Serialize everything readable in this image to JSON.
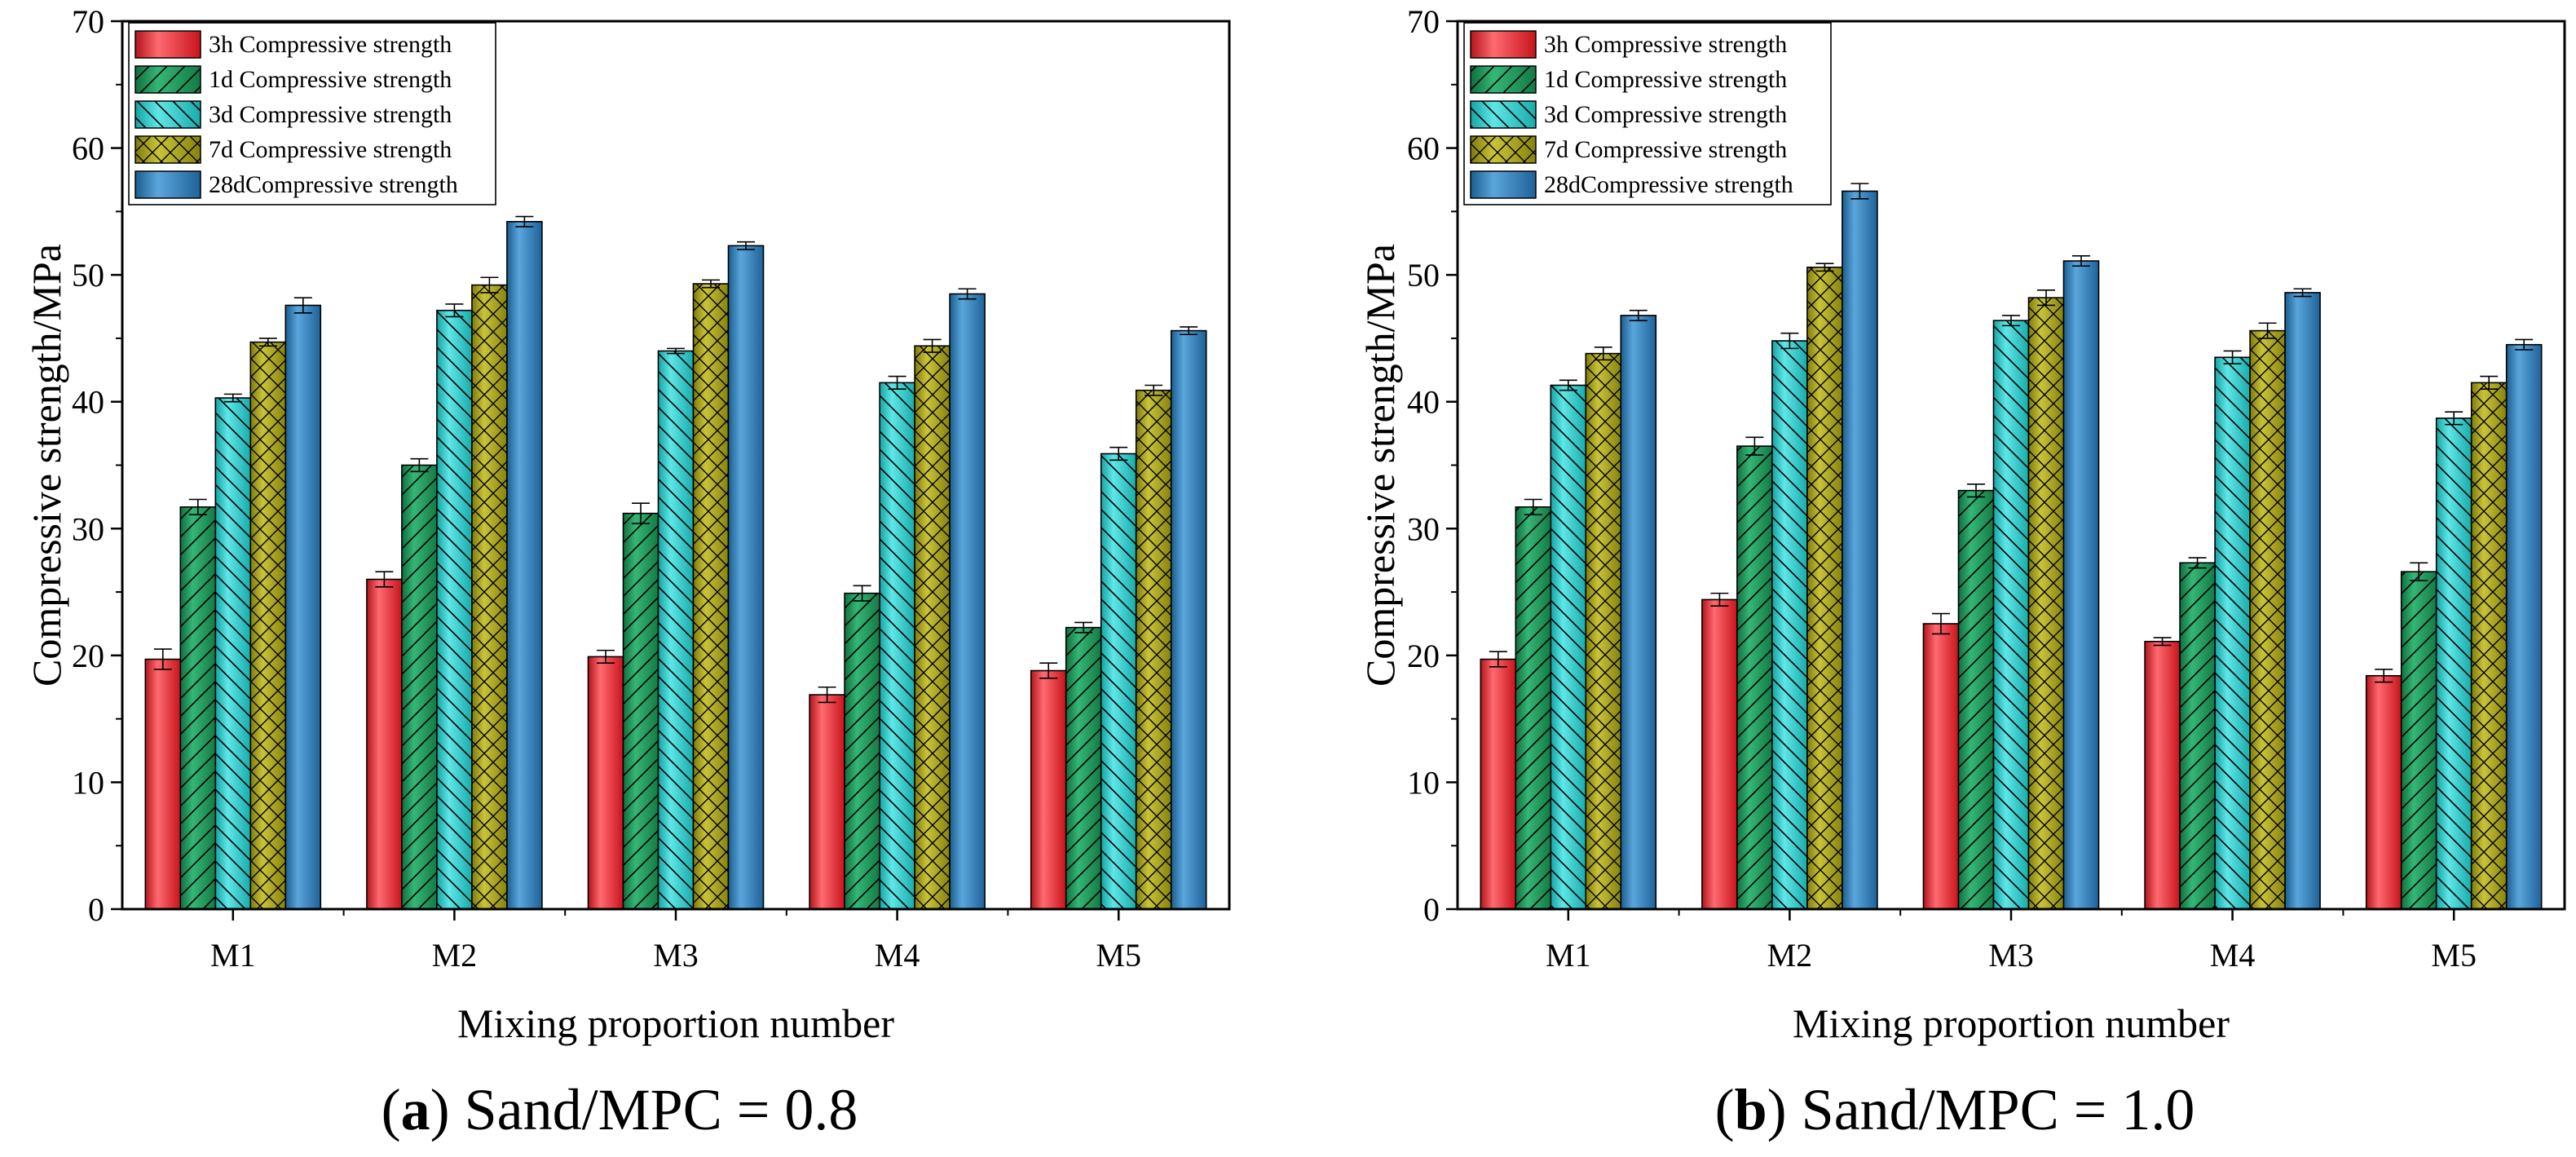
{
  "colors": {
    "3h": "#e8262d",
    "1d": "#1e9a5a",
    "3d": "#27c9c9",
    "7d": "#a6a116",
    "28d": "#2e7fba"
  },
  "chart_data": [
    {
      "type": "bar",
      "panel_letter": "a",
      "caption": "Sand/MPC = 0.8",
      "xlabel": "Mixing proportion number",
      "ylabel": "Compressive strength/MPa",
      "ylim": [
        0,
        70
      ],
      "yticks": [
        "0",
        "10",
        "20",
        "30",
        "40",
        "50",
        "60",
        "70"
      ],
      "categories": [
        "M1",
        "M2",
        "M3",
        "M4",
        "M5"
      ],
      "legend_position": "top-left",
      "series": [
        {
          "key": "3h",
          "name": "3h Compressive strength",
          "values": [
            19.7,
            26.0,
            19.9,
            16.9,
            18.8
          ],
          "errors": [
            0.8,
            0.6,
            0.5,
            0.6,
            0.6
          ]
        },
        {
          "key": "1d",
          "name": "1d Compressive strength",
          "values": [
            31.7,
            35.0,
            31.2,
            24.9,
            22.2
          ],
          "errors": [
            0.6,
            0.5,
            0.8,
            0.6,
            0.4
          ]
        },
        {
          "key": "3d",
          "name": "3d Compressive strength",
          "values": [
            40.3,
            47.2,
            44.0,
            41.5,
            35.9
          ],
          "errors": [
            0.3,
            0.5,
            0.2,
            0.5,
            0.5
          ]
        },
        {
          "key": "7d",
          "name": "7d Compressive strength",
          "values": [
            44.7,
            49.2,
            49.3,
            44.4,
            40.9
          ],
          "errors": [
            0.3,
            0.6,
            0.3,
            0.5,
            0.4
          ]
        },
        {
          "key": "28d",
          "name": "28dCompressive strength",
          "values": [
            47.6,
            54.2,
            52.3,
            48.5,
            45.6
          ],
          "errors": [
            0.6,
            0.4,
            0.3,
            0.4,
            0.3
          ]
        }
      ]
    },
    {
      "type": "bar",
      "panel_letter": "b",
      "caption": "Sand/MPC = 1.0",
      "xlabel": "Mixing proportion number",
      "ylabel": "Compressive strength/MPa",
      "ylim": [
        0,
        70
      ],
      "yticks": [
        "0",
        "10",
        "20",
        "30",
        "40",
        "50",
        "60",
        "70"
      ],
      "categories": [
        "M1",
        "M2",
        "M3",
        "M4",
        "M5"
      ],
      "legend_position": "top-left",
      "series": [
        {
          "key": "3h",
          "name": "3h Compressive strength",
          "values": [
            19.7,
            24.4,
            22.5,
            21.1,
            18.4
          ],
          "errors": [
            0.6,
            0.5,
            0.8,
            0.3,
            0.5
          ]
        },
        {
          "key": "1d",
          "name": "1d Compressive strength",
          "values": [
            31.7,
            36.5,
            33.0,
            27.3,
            26.6
          ],
          "errors": [
            0.6,
            0.7,
            0.5,
            0.4,
            0.7
          ]
        },
        {
          "key": "3d",
          "name": "3d Compressive strength",
          "values": [
            41.3,
            44.8,
            46.4,
            43.5,
            38.7
          ],
          "errors": [
            0.4,
            0.6,
            0.4,
            0.5,
            0.5
          ]
        },
        {
          "key": "7d",
          "name": "7d Compressive strength",
          "values": [
            43.8,
            50.6,
            48.2,
            45.6,
            41.5
          ],
          "errors": [
            0.5,
            0.3,
            0.6,
            0.6,
            0.5
          ]
        },
        {
          "key": "28d",
          "name": "28dCompressive strength",
          "values": [
            46.8,
            56.6,
            51.1,
            48.6,
            44.5
          ],
          "errors": [
            0.4,
            0.6,
            0.4,
            0.3,
            0.4
          ]
        }
      ]
    }
  ]
}
